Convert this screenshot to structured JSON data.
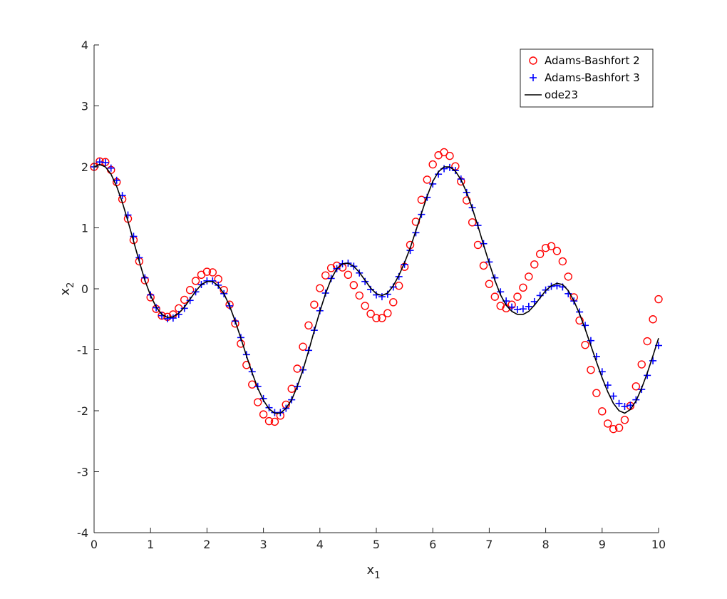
{
  "chart_data": {
    "type": "line",
    "title": "",
    "xlabel": {
      "base": "x",
      "sub": "1"
    },
    "ylabel": {
      "base": "x",
      "sub": "2"
    },
    "xlim": [
      0,
      10
    ],
    "ylim": [
      -4,
      4
    ],
    "xticks": [
      "0",
      "1",
      "2",
      "3",
      "4",
      "5",
      "6",
      "7",
      "8",
      "9",
      "10"
    ],
    "yticks": [
      "-4",
      "-3",
      "-2",
      "-1",
      "0",
      "1",
      "2",
      "3",
      "4"
    ],
    "grid": false,
    "legend_position": "top-right",
    "series": [
      {
        "name": "Adams-Bashfort 2",
        "marker": "circle",
        "color": "#ff0000",
        "x": [
          0.0,
          0.1,
          0.2,
          0.3,
          0.4,
          0.5,
          0.6,
          0.7,
          0.8,
          0.9,
          1.0,
          1.1,
          1.2,
          1.3,
          1.4,
          1.5,
          1.6,
          1.7,
          1.8,
          1.9,
          2.0,
          2.1,
          2.2,
          2.3,
          2.4,
          2.5,
          2.6,
          2.7,
          2.8,
          2.9,
          3.0,
          3.1,
          3.2,
          3.3,
          3.4,
          3.5,
          3.6,
          3.7,
          3.8,
          3.9,
          4.0,
          4.1,
          4.2,
          4.3,
          4.4,
          4.5,
          4.6,
          4.7,
          4.8,
          4.9,
          5.0,
          5.1,
          5.2,
          5.3,
          5.4,
          5.5,
          5.6,
          5.7,
          5.8,
          5.9,
          6.0,
          6.1,
          6.2,
          6.3,
          6.4,
          6.5,
          6.6,
          6.7,
          6.8,
          6.9,
          7.0,
          7.1,
          7.2,
          7.3,
          7.4,
          7.5,
          7.6,
          7.7,
          7.8,
          7.9,
          8.0,
          8.1,
          8.2,
          8.3,
          8.4,
          8.5,
          8.6,
          8.7,
          8.8,
          8.9,
          9.0,
          9.1,
          9.2,
          9.3,
          9.4,
          9.5,
          9.6,
          9.7,
          9.8,
          9.9,
          10.0
        ],
        "y": [
          2.0,
          2.09,
          2.08,
          1.95,
          1.75,
          1.47,
          1.15,
          0.8,
          0.45,
          0.14,
          -0.14,
          -0.33,
          -0.44,
          -0.46,
          -0.42,
          -0.32,
          -0.18,
          -0.02,
          0.13,
          0.23,
          0.28,
          0.27,
          0.16,
          -0.02,
          -0.26,
          -0.57,
          -0.9,
          -1.25,
          -1.57,
          -1.86,
          -2.06,
          -2.17,
          -2.18,
          -2.08,
          -1.9,
          -1.64,
          -1.31,
          -0.95,
          -0.6,
          -0.26,
          0.01,
          0.22,
          0.34,
          0.38,
          0.35,
          0.23,
          0.06,
          -0.11,
          -0.28,
          -0.41,
          -0.48,
          -0.48,
          -0.4,
          -0.22,
          0.05,
          0.36,
          0.72,
          1.1,
          1.46,
          1.79,
          2.04,
          2.19,
          2.24,
          2.18,
          2.01,
          1.76,
          1.45,
          1.09,
          0.72,
          0.38,
          0.08,
          -0.13,
          -0.28,
          -0.32,
          -0.26,
          -0.13,
          0.02,
          0.2,
          0.4,
          0.57,
          0.67,
          0.7,
          0.62,
          0.45,
          0.2,
          -0.14,
          -0.52,
          -0.92,
          -1.33,
          -1.71,
          -2.01,
          -2.21,
          -2.3,
          -2.28,
          -2.15,
          -1.92,
          -1.6,
          -1.24,
          -0.86,
          -0.5,
          -0.17
        ]
      },
      {
        "name": "Adams-Bashfort 3",
        "marker": "plus",
        "color": "#0000ff",
        "x": [
          0.0,
          0.1,
          0.2,
          0.3,
          0.4,
          0.5,
          0.6,
          0.7,
          0.8,
          0.9,
          1.0,
          1.1,
          1.2,
          1.3,
          1.4,
          1.5,
          1.6,
          1.7,
          1.8,
          1.9,
          2.0,
          2.1,
          2.2,
          2.3,
          2.4,
          2.5,
          2.6,
          2.7,
          2.8,
          2.9,
          3.0,
          3.1,
          3.2,
          3.3,
          3.4,
          3.5,
          3.6,
          3.7,
          3.8,
          3.9,
          4.0,
          4.1,
          4.2,
          4.3,
          4.4,
          4.5,
          4.6,
          4.7,
          4.8,
          4.9,
          5.0,
          5.1,
          5.2,
          5.3,
          5.4,
          5.5,
          5.6,
          5.7,
          5.8,
          5.9,
          6.0,
          6.1,
          6.2,
          6.3,
          6.4,
          6.5,
          6.6,
          6.7,
          6.8,
          6.9,
          7.0,
          7.1,
          7.2,
          7.3,
          7.4,
          7.5,
          7.6,
          7.7,
          7.8,
          7.9,
          8.0,
          8.1,
          8.2,
          8.3,
          8.4,
          8.5,
          8.6,
          8.7,
          8.8,
          8.9,
          9.0,
          9.1,
          9.2,
          9.3,
          9.4,
          9.5,
          9.6,
          9.7,
          9.8,
          9.9,
          10.0
        ],
        "y": [
          2.0,
          2.08,
          2.07,
          1.98,
          1.78,
          1.53,
          1.21,
          0.86,
          0.51,
          0.18,
          -0.1,
          -0.31,
          -0.44,
          -0.49,
          -0.48,
          -0.42,
          -0.32,
          -0.19,
          -0.05,
          0.07,
          0.13,
          0.13,
          0.06,
          -0.08,
          -0.28,
          -0.53,
          -0.8,
          -1.08,
          -1.36,
          -1.6,
          -1.8,
          -1.95,
          -2.03,
          -2.03,
          -1.96,
          -1.82,
          -1.6,
          -1.33,
          -1.01,
          -0.68,
          -0.36,
          -0.07,
          0.17,
          0.33,
          0.41,
          0.42,
          0.37,
          0.26,
          0.12,
          -0.01,
          -0.1,
          -0.13,
          -0.09,
          0.03,
          0.2,
          0.4,
          0.63,
          0.92,
          1.22,
          1.5,
          1.72,
          1.88,
          1.97,
          1.99,
          1.94,
          1.8,
          1.58,
          1.33,
          1.04,
          0.74,
          0.44,
          0.18,
          -0.05,
          -0.2,
          -0.3,
          -0.34,
          -0.33,
          -0.29,
          -0.21,
          -0.11,
          -0.02,
          0.04,
          0.05,
          0.03,
          -0.08,
          -0.2,
          -0.38,
          -0.6,
          -0.85,
          -1.11,
          -1.36,
          -1.58,
          -1.76,
          -1.88,
          -1.93,
          -1.91,
          -1.82,
          -1.65,
          -1.42,
          -1.18,
          -0.93
        ]
      },
      {
        "name": "ode23",
        "marker": "line",
        "color": "#000000",
        "x": [
          0.0,
          0.1,
          0.2,
          0.3,
          0.4,
          0.5,
          0.6,
          0.7,
          0.8,
          0.9,
          1.0,
          1.1,
          1.2,
          1.3,
          1.4,
          1.5,
          1.6,
          1.7,
          1.8,
          1.9,
          2.0,
          2.1,
          2.2,
          2.3,
          2.4,
          2.5,
          2.6,
          2.7,
          2.8,
          2.9,
          3.0,
          3.1,
          3.2,
          3.3,
          3.4,
          3.5,
          3.6,
          3.7,
          3.8,
          3.9,
          4.0,
          4.1,
          4.2,
          4.3,
          4.4,
          4.5,
          4.6,
          4.7,
          4.8,
          4.9,
          5.0,
          5.1,
          5.2,
          5.3,
          5.4,
          5.5,
          5.6,
          5.7,
          5.8,
          5.9,
          6.0,
          6.1,
          6.2,
          6.3,
          6.4,
          6.5,
          6.6,
          6.7,
          6.8,
          6.9,
          7.0,
          7.1,
          7.2,
          7.3,
          7.4,
          7.5,
          7.6,
          7.7,
          7.8,
          7.9,
          8.0,
          8.1,
          8.2,
          8.3,
          8.4,
          8.5,
          8.6,
          8.7,
          8.8,
          8.9,
          9.0,
          9.1,
          9.2,
          9.3,
          9.4,
          9.5,
          9.6,
          9.7,
          9.8,
          9.9,
          10.0
        ],
        "y": [
          2.0,
          2.04,
          2.0,
          1.88,
          1.68,
          1.42,
          1.11,
          0.78,
          0.45,
          0.14,
          -0.11,
          -0.3,
          -0.42,
          -0.47,
          -0.46,
          -0.4,
          -0.3,
          -0.17,
          -0.04,
          0.07,
          0.12,
          0.12,
          0.05,
          -0.08,
          -0.28,
          -0.53,
          -0.81,
          -1.1,
          -1.38,
          -1.63,
          -1.83,
          -1.97,
          -2.04,
          -2.04,
          -1.96,
          -1.82,
          -1.6,
          -1.33,
          -1.02,
          -0.69,
          -0.37,
          -0.08,
          0.16,
          0.33,
          0.41,
          0.42,
          0.37,
          0.27,
          0.14,
          0.01,
          -0.08,
          -0.11,
          -0.07,
          0.05,
          0.22,
          0.43,
          0.67,
          0.95,
          1.24,
          1.52,
          1.76,
          1.92,
          2.0,
          2.0,
          1.93,
          1.79,
          1.58,
          1.32,
          1.03,
          0.72,
          0.42,
          0.14,
          -0.1,
          -0.27,
          -0.37,
          -0.42,
          -0.42,
          -0.37,
          -0.27,
          -0.15,
          -0.03,
          0.05,
          0.09,
          0.07,
          -0.03,
          -0.2,
          -0.41,
          -0.66,
          -0.93,
          -1.2,
          -1.46,
          -1.69,
          -1.88,
          -2.0,
          -2.04,
          -1.98,
          -1.84,
          -1.63,
          -1.38,
          -1.1,
          -0.81
        ]
      }
    ]
  }
}
